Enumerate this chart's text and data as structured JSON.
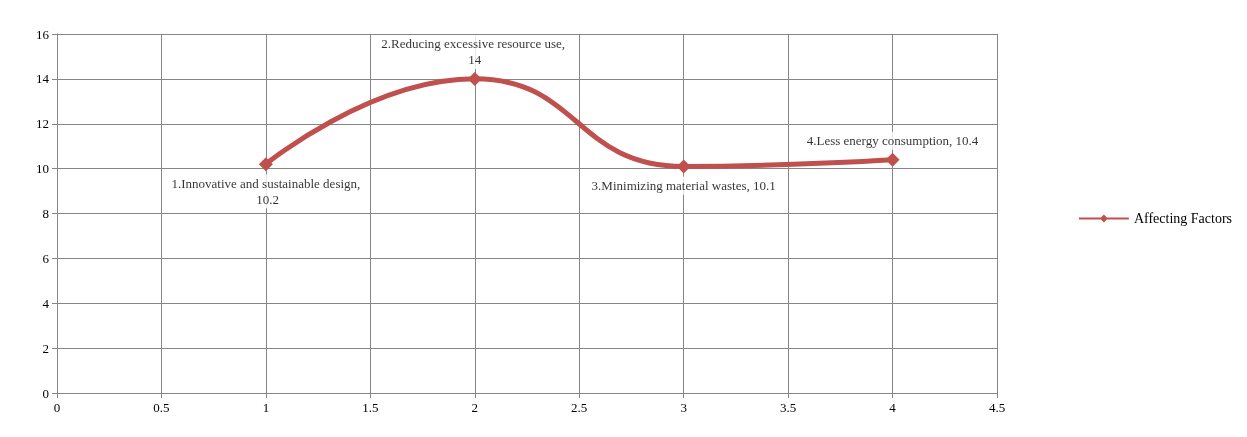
{
  "chart_data": {
    "type": "line",
    "x": [
      1,
      2,
      3,
      4
    ],
    "series": [
      {
        "name": "Affecting Factors",
        "color": "#c0504d",
        "values": [
          10.2,
          14,
          10.1,
          10.4
        ]
      }
    ],
    "annotations": [
      {
        "text": "1.Innovative and sustainable design, 10.2",
        "x": 1,
        "y": 10.2
      },
      {
        "text": "2.Reducing excessive resource use, 14",
        "x": 2,
        "y": 14
      },
      {
        "text": "3.Minimizing material wastes, 10.1",
        "x": 3,
        "y": 10.1
      },
      {
        "text": "4.Less energy consumption, 10.4",
        "x": 4,
        "y": 10.4
      }
    ],
    "xlim": [
      0,
      4.5
    ],
    "xticks": [
      0,
      0.5,
      1,
      1.5,
      2,
      2.5,
      3,
      3.5,
      4,
      4.5
    ],
    "ylim": [
      0,
      16
    ],
    "yticks": [
      0,
      2,
      4,
      6,
      8,
      10,
      12,
      14,
      16
    ],
    "grid": true,
    "legend": "right",
    "marker": "diamond",
    "line_style": "solid"
  }
}
